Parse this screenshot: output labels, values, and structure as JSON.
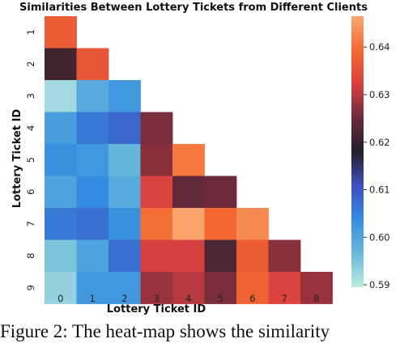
{
  "chart_data": {
    "type": "heatmap",
    "title": "Similarities Between Lottery Tickets from Different Clients",
    "xlabel": "Lottery Ticket ID",
    "ylabel": "Lottery Ticket ID",
    "x_categories": [
      "0",
      "1",
      "2",
      "3",
      "4",
      "5",
      "6",
      "7",
      "8"
    ],
    "y_categories": [
      "1",
      "2",
      "3",
      "4",
      "5",
      "6",
      "7",
      "8",
      "9"
    ],
    "values": [
      [
        0.637,
        null,
        null,
        null,
        null,
        null,
        null,
        null,
        null
      ],
      [
        0.621,
        0.636,
        null,
        null,
        null,
        null,
        null,
        null,
        null
      ],
      [
        0.592,
        0.599,
        0.602,
        null,
        null,
        null,
        null,
        null,
        null
      ],
      [
        0.601,
        0.606,
        0.608,
        0.626,
        null,
        null,
        null,
        null,
        null
      ],
      [
        0.603,
        0.602,
        0.597,
        0.627,
        0.641,
        null,
        null,
        null,
        null
      ],
      [
        0.6,
        0.604,
        0.599,
        0.633,
        0.624,
        0.625,
        null,
        null,
        null
      ],
      [
        0.606,
        0.607,
        0.603,
        0.64,
        0.646,
        0.639,
        0.643,
        null,
        null
      ],
      [
        0.595,
        0.6,
        0.607,
        0.632,
        0.632,
        0.622,
        0.637,
        0.627,
        null
      ],
      [
        0.593,
        0.602,
        0.602,
        0.628,
        0.63,
        0.626,
        0.638,
        0.633,
        0.628
      ]
    ],
    "colorbar": {
      "min": 0.5895,
      "max": 0.6465,
      "ticks": [
        "0.59",
        "0.60",
        "0.61",
        "0.62",
        "0.63",
        "0.64"
      ]
    },
    "colormap": [
      "#c0ebe1",
      "#68b8db",
      "#358de0",
      "#3f4fc0",
      "#202028",
      "#6d2a3c",
      "#d84040",
      "#f46a30",
      "#f9a870"
    ],
    "grid": false
  },
  "caption": "Figure 2: The heat-map shows the similarity"
}
